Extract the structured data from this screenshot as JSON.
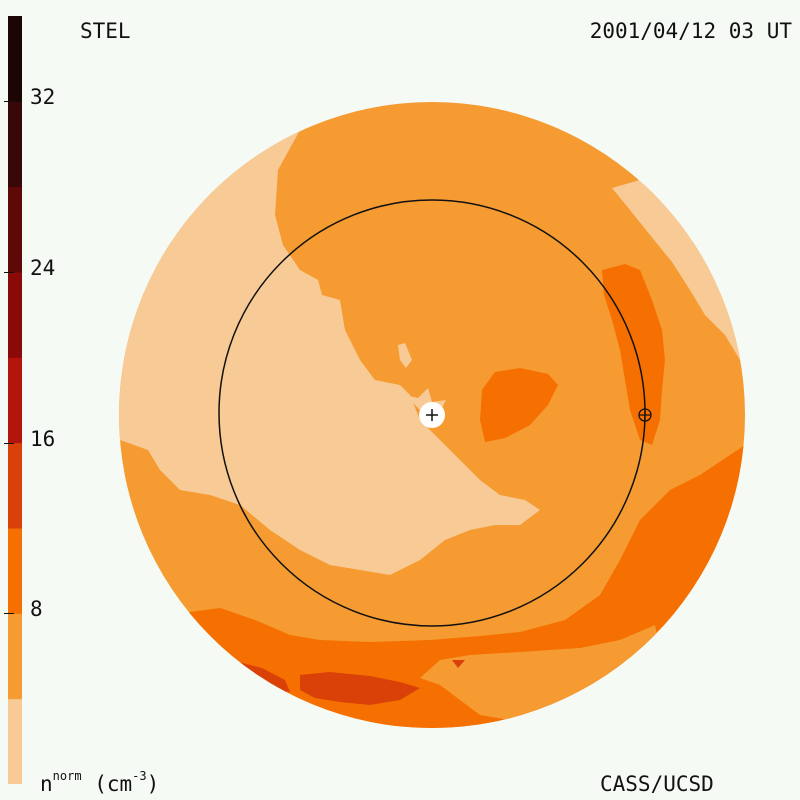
{
  "header": {
    "source": "STEL",
    "datetime": "2001/04/12 03 UT"
  },
  "footer": {
    "units_base": "n",
    "units_sup": "norm",
    "units_rest": " (cm",
    "units_exp": "-3",
    "units_close": ")",
    "credit": "CASS/UCSD"
  },
  "colorbar": {
    "quantity": "normalized density",
    "range": [
      0,
      36
    ],
    "ticks": [
      {
        "value": 8,
        "label": "8"
      },
      {
        "value": 16,
        "label": "16"
      },
      {
        "value": 24,
        "label": "24"
      },
      {
        "value": 32,
        "label": "32"
      }
    ],
    "levels": [
      {
        "min": 0,
        "max": 4,
        "color": "#f7ca96"
      },
      {
        "min": 4,
        "max": 8,
        "color": "#f59b32"
      },
      {
        "min": 8,
        "max": 12,
        "color": "#f57000"
      },
      {
        "min": 12,
        "max": 16,
        "color": "#d94108"
      },
      {
        "min": 16,
        "max": 20,
        "color": "#b3140c"
      },
      {
        "min": 20,
        "max": 24,
        "color": "#8a0a0a"
      },
      {
        "min": 24,
        "max": 28,
        "color": "#5e0808"
      },
      {
        "min": 28,
        "max": 32,
        "color": "#380707"
      },
      {
        "min": 32,
        "max": 36,
        "color": "#1c0505"
      }
    ]
  },
  "map": {
    "background_color": "#f5faf5",
    "markers": [
      "sun-marker",
      "earth-marker",
      "earth-orbit-circle"
    ]
  }
}
